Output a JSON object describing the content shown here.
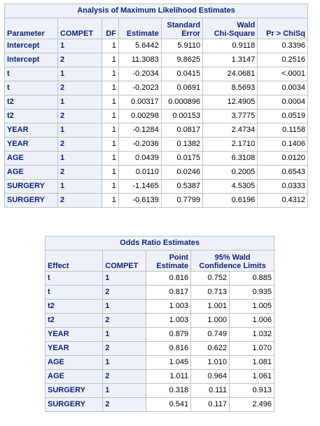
{
  "mle": {
    "title": "Analysis of Maximum Likelihood Estimates",
    "headers": {
      "parameter": "Parameter",
      "compet": "COMPET",
      "df": "DF",
      "estimate": "Estimate",
      "stderr_top": "Standard",
      "stderr_bottom": "Error",
      "wald_top": "Wald",
      "wald_bottom": "Chi-Square",
      "pr": "Pr > ChiSq"
    },
    "rows": [
      {
        "param": "Intercept",
        "compet": "1",
        "df": "1",
        "est": "5.6442",
        "se": "5.9110",
        "chisq": "0.9118",
        "p": "0.3396"
      },
      {
        "param": "Intercept",
        "compet": "2",
        "df": "1",
        "est": "11.3083",
        "se": "9.8625",
        "chisq": "1.3147",
        "p": "0.2516"
      },
      {
        "param": "t",
        "compet": "1",
        "df": "1",
        "est": "-0.2034",
        "se": "0.0415",
        "chisq": "24.0681",
        "p": "<.0001"
      },
      {
        "param": "t",
        "compet": "2",
        "df": "1",
        "est": "-0.2023",
        "se": "0.0691",
        "chisq": "8.5693",
        "p": "0.0034"
      },
      {
        "param": "t2",
        "compet": "1",
        "df": "1",
        "est": "0.00317",
        "se": "0.000896",
        "chisq": "12.4905",
        "p": "0.0004"
      },
      {
        "param": "t2",
        "compet": "2",
        "df": "1",
        "est": "0.00298",
        "se": "0.00153",
        "chisq": "3.7775",
        "p": "0.0519"
      },
      {
        "param": "YEAR",
        "compet": "1",
        "df": "1",
        "est": "-0.1284",
        "se": "0.0817",
        "chisq": "2.4734",
        "p": "0.1158"
      },
      {
        "param": "YEAR",
        "compet": "2",
        "df": "1",
        "est": "-0.2036",
        "se": "0.1382",
        "chisq": "2.1710",
        "p": "0.1406"
      },
      {
        "param": "AGE",
        "compet": "1",
        "df": "1",
        "est": "0.0439",
        "se": "0.0175",
        "chisq": "6.3108",
        "p": "0.0120"
      },
      {
        "param": "AGE",
        "compet": "2",
        "df": "1",
        "est": "0.0110",
        "se": "0.0246",
        "chisq": "0.2005",
        "p": "0.6543"
      },
      {
        "param": "SURGERY",
        "compet": "1",
        "df": "1",
        "est": "-1.1465",
        "se": "0.5387",
        "chisq": "4.5305",
        "p": "0.0333"
      },
      {
        "param": "SURGERY",
        "compet": "2",
        "df": "1",
        "est": "-0.6139",
        "se": "0.7799",
        "chisq": "0.6196",
        "p": "0.4312"
      }
    ]
  },
  "odds": {
    "title": "Odds Ratio Estimates",
    "headers": {
      "effect": "Effect",
      "compet": "COMPET",
      "point_top": "Point",
      "point_bottom": "Estimate",
      "wald_top": "95% Wald",
      "wald_bottom": "Confidence Limits"
    },
    "rows": [
      {
        "effect": "t",
        "compet": "1",
        "est": "0.816",
        "lo": "0.752",
        "hi": "0.885"
      },
      {
        "effect": "t",
        "compet": "2",
        "est": "0.817",
        "lo": "0.713",
        "hi": "0.935"
      },
      {
        "effect": "t2",
        "compet": "1",
        "est": "1.003",
        "lo": "1.001",
        "hi": "1.005"
      },
      {
        "effect": "t2",
        "compet": "2",
        "est": "1.003",
        "lo": "1.000",
        "hi": "1.006"
      },
      {
        "effect": "YEAR",
        "compet": "1",
        "est": "0.879",
        "lo": "0.749",
        "hi": "1.032"
      },
      {
        "effect": "YEAR",
        "compet": "2",
        "est": "0.816",
        "lo": "0.622",
        "hi": "1.070"
      },
      {
        "effect": "AGE",
        "compet": "1",
        "est": "1.045",
        "lo": "1.010",
        "hi": "1.081"
      },
      {
        "effect": "AGE",
        "compet": "2",
        "est": "1.011",
        "lo": "0.964",
        "hi": "1.061"
      },
      {
        "effect": "SURGERY",
        "compet": "1",
        "est": "0.318",
        "lo": "0.111",
        "hi": "0.913"
      },
      {
        "effect": "SURGERY",
        "compet": "2",
        "est": "0.541",
        "lo": "0.117",
        "hi": "2.496"
      }
    ]
  }
}
